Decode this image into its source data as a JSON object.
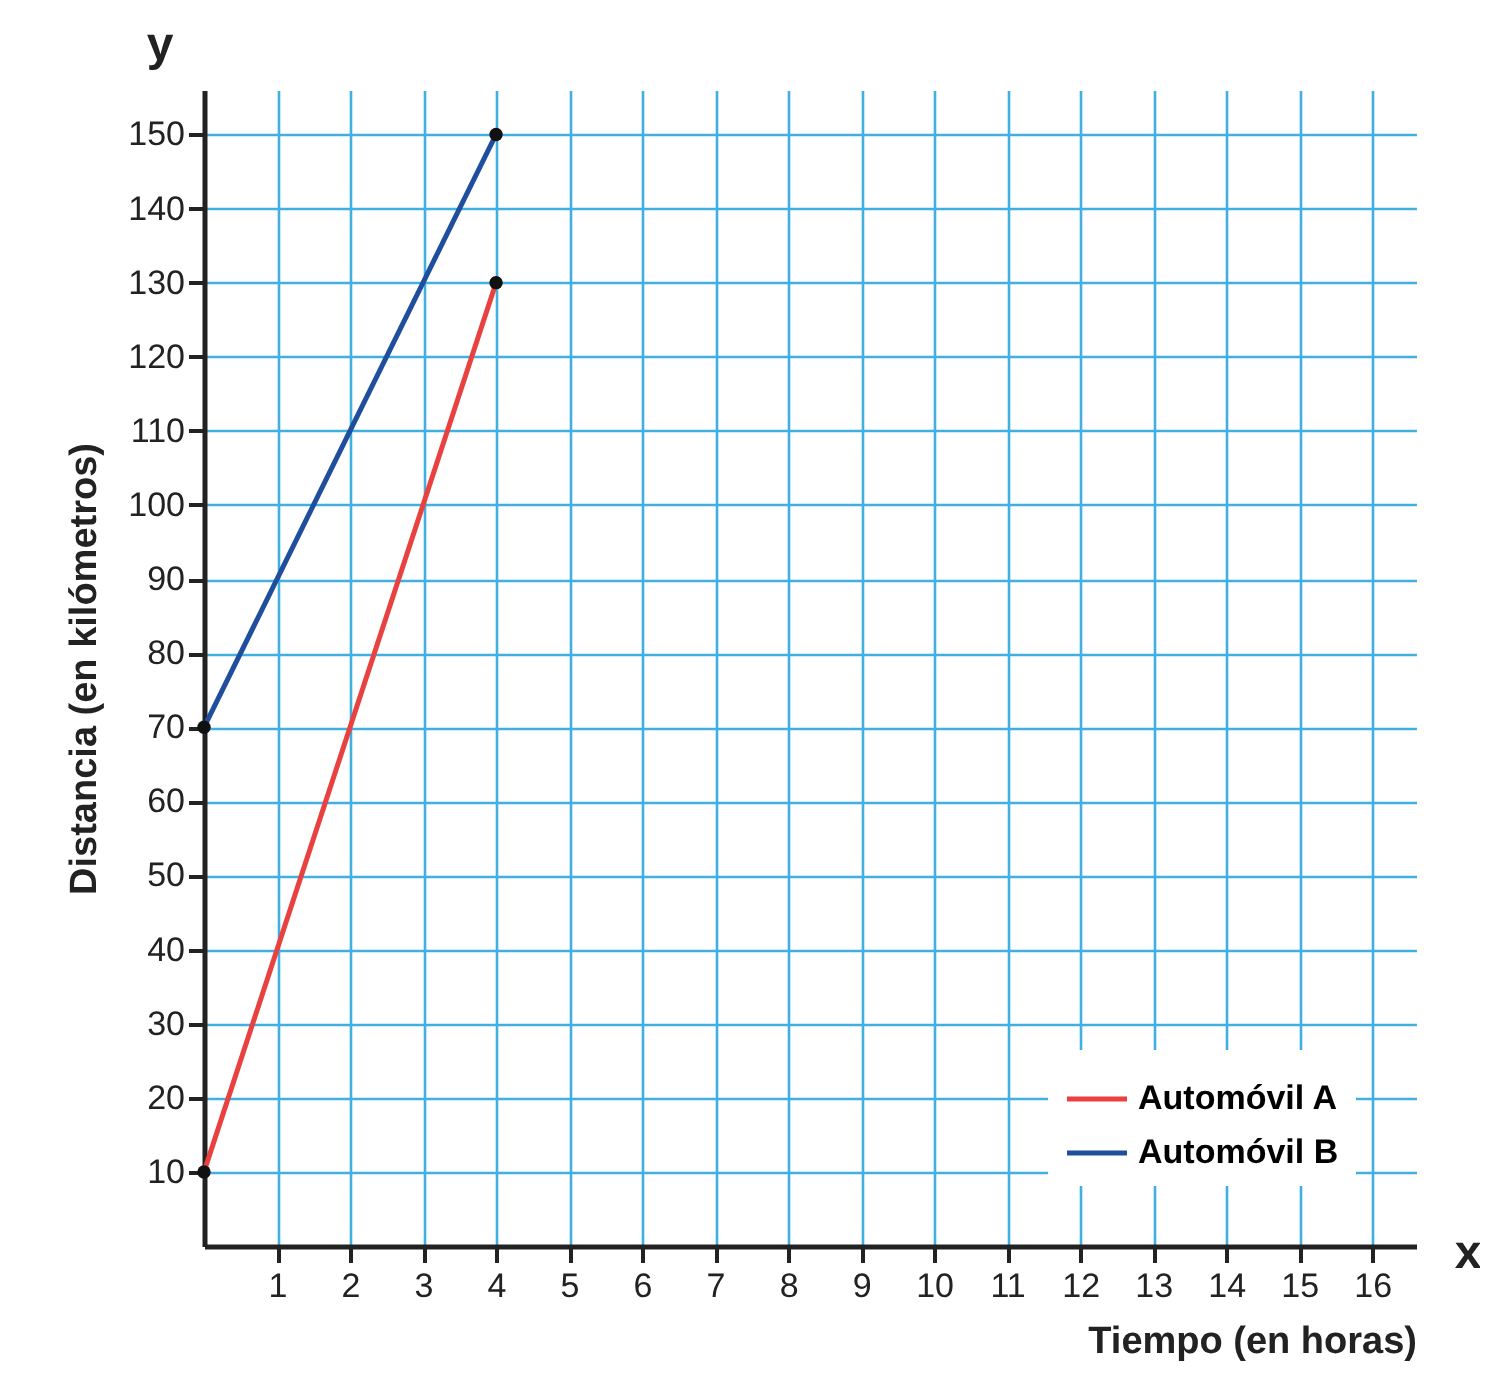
{
  "chart_data": {
    "type": "line",
    "xlabel": "Tiempo (en horas)",
    "ylabel": "Distancia (en kilómetros)",
    "annotations": [
      "x",
      "y"
    ],
    "x": [
      0,
      4
    ],
    "series": [
      {
        "name": "Automóvil A",
        "color": "#e8413f",
        "values": [
          10,
          130
        ]
      },
      {
        "name": "Automóvil B",
        "color": "#1f4e9c",
        "values": [
          70,
          150
        ]
      }
    ],
    "xlim": [
      0,
      16.6
    ],
    "ylim": [
      0,
      156
    ],
    "xticks": [
      1,
      2,
      3,
      4,
      5,
      6,
      7,
      8,
      9,
      10,
      11,
      12,
      13,
      14,
      15,
      16
    ],
    "yticks": [
      10,
      20,
      30,
      40,
      50,
      60,
      70,
      80,
      90,
      100,
      110,
      120,
      130,
      140,
      150
    ],
    "grid": true,
    "legend": "bottom right",
    "marker": "circle",
    "line_style": "solid"
  }
}
